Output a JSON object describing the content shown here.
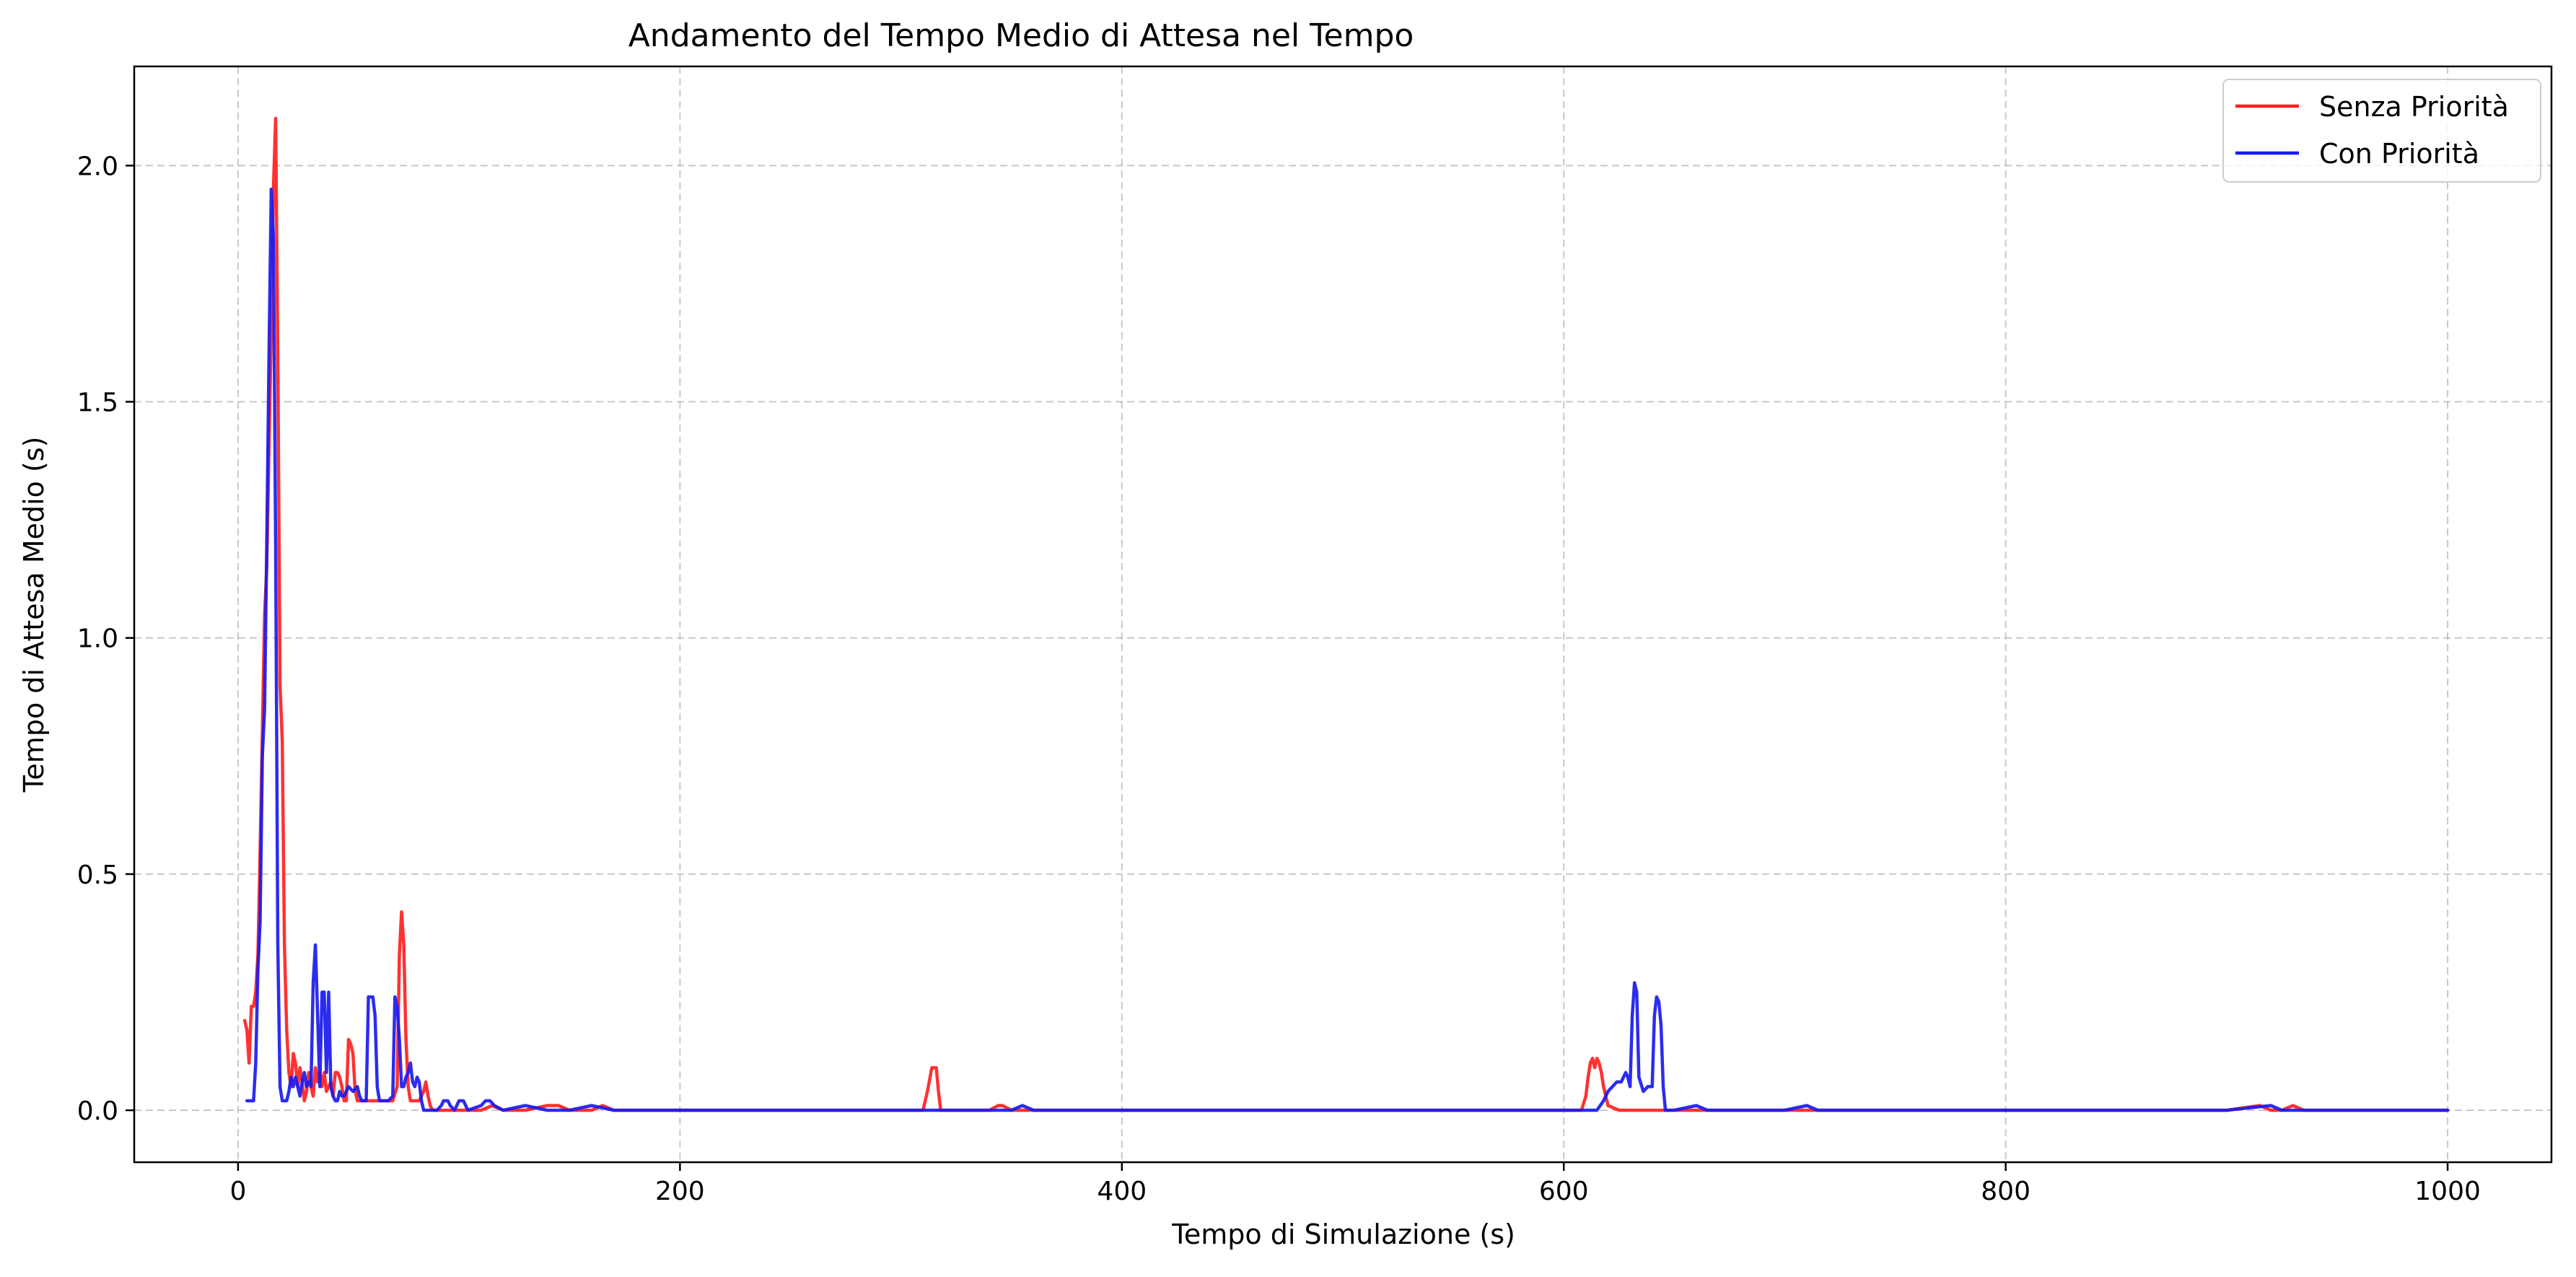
{
  "chart_data": {
    "type": "line",
    "title": "Andamento del Tempo Medio di Attesa nel Tempo",
    "xlabel": "Tempo di Simulazione (s)",
    "ylabel": "Tempo di Attesa Medio (s)",
    "xlim": [
      -47,
      1047
    ],
    "ylim": [
      -0.11,
      2.21
    ],
    "xticks": [
      0,
      200,
      400,
      600,
      800,
      1000
    ],
    "yticks": [
      0.0,
      0.5,
      1.0,
      1.5,
      2.0
    ],
    "xtick_labels": [
      "0",
      "200",
      "400",
      "600",
      "800",
      "1000"
    ],
    "ytick_labels": [
      "0.0",
      "0.5",
      "1.0",
      "1.5",
      "2.0"
    ],
    "grid": true,
    "legend_position": "top-right",
    "series": [
      {
        "name": "Senza Priorità",
        "color": "#ff2020",
        "points": [
          [
            3,
            0.19
          ],
          [
            4,
            0.17
          ],
          [
            5,
            0.1
          ],
          [
            6,
            0.22
          ],
          [
            7,
            0.22
          ],
          [
            8,
            0.25
          ],
          [
            9,
            0.33
          ],
          [
            10,
            0.55
          ],
          [
            11,
            0.8
          ],
          [
            12,
            1.05
          ],
          [
            13,
            1.15
          ],
          [
            14,
            1.4
          ],
          [
            15,
            1.65
          ],
          [
            16,
            1.95
          ],
          [
            17,
            2.1
          ],
          [
            18,
            1.6
          ],
          [
            19,
            0.9
          ],
          [
            20,
            0.78
          ],
          [
            21,
            0.35
          ],
          [
            22,
            0.17
          ],
          [
            23,
            0.08
          ],
          [
            24,
            0.05
          ],
          [
            25,
            0.12
          ],
          [
            26,
            0.1
          ],
          [
            27,
            0.05
          ],
          [
            28,
            0.09
          ],
          [
            29,
            0.06
          ],
          [
            30,
            0.02
          ],
          [
            31,
            0.04
          ],
          [
            32,
            0.08
          ],
          [
            33,
            0.05
          ],
          [
            34,
            0.03
          ],
          [
            35,
            0.09
          ],
          [
            36,
            0.06
          ],
          [
            37,
            0.08
          ],
          [
            38,
            0.05
          ],
          [
            39,
            0.08
          ],
          [
            40,
            0.04
          ],
          [
            41,
            0.05
          ],
          [
            42,
            0.06
          ],
          [
            43,
            0.03
          ],
          [
            44,
            0.08
          ],
          [
            45,
            0.08
          ],
          [
            46,
            0.07
          ],
          [
            47,
            0.05
          ],
          [
            48,
            0.02
          ],
          [
            49,
            0.02
          ],
          [
            50,
            0.15
          ],
          [
            51,
            0.14
          ],
          [
            52,
            0.12
          ],
          [
            53,
            0.04
          ],
          [
            54,
            0.02
          ],
          [
            55,
            0.02
          ],
          [
            57,
            0.02
          ],
          [
            60,
            0.02
          ],
          [
            62,
            0.02
          ],
          [
            65,
            0.02
          ],
          [
            68,
            0.02
          ],
          [
            70,
            0.02
          ],
          [
            72,
            0.05
          ],
          [
            73,
            0.33
          ],
          [
            74,
            0.42
          ],
          [
            75,
            0.35
          ],
          [
            76,
            0.15
          ],
          [
            77,
            0.05
          ],
          [
            78,
            0.02
          ],
          [
            80,
            0.02
          ],
          [
            82,
            0.02
          ],
          [
            84,
            0.04
          ],
          [
            85,
            0.06
          ],
          [
            86,
            0.03
          ],
          [
            87,
            0.01
          ],
          [
            88,
            0.0
          ],
          [
            90,
            0.0
          ],
          [
            100,
            0.0
          ],
          [
            105,
            0.0
          ],
          [
            110,
            0.0
          ],
          [
            115,
            0.01
          ],
          [
            120,
            0.0
          ],
          [
            130,
            0.0
          ],
          [
            140,
            0.01
          ],
          [
            145,
            0.01
          ],
          [
            150,
            0.0
          ],
          [
            160,
            0.0
          ],
          [
            165,
            0.01
          ],
          [
            170,
            0.0
          ],
          [
            200,
            0.0
          ],
          [
            250,
            0.0
          ],
          [
            300,
            0.0
          ],
          [
            310,
            0.0
          ],
          [
            312,
            0.04
          ],
          [
            314,
            0.09
          ],
          [
            316,
            0.09
          ],
          [
            317,
            0.04
          ],
          [
            318,
            0.0
          ],
          [
            340,
            0.0
          ],
          [
            344,
            0.01
          ],
          [
            346,
            0.01
          ],
          [
            350,
            0.0
          ],
          [
            400,
            0.0
          ],
          [
            450,
            0.0
          ],
          [
            500,
            0.0
          ],
          [
            550,
            0.0
          ],
          [
            600,
            0.0
          ],
          [
            608,
            0.0
          ],
          [
            610,
            0.03
          ],
          [
            611,
            0.07
          ],
          [
            612,
            0.1
          ],
          [
            613,
            0.11
          ],
          [
            614,
            0.09
          ],
          [
            615,
            0.11
          ],
          [
            616,
            0.1
          ],
          [
            617,
            0.08
          ],
          [
            618,
            0.05
          ],
          [
            619,
            0.03
          ],
          [
            620,
            0.01
          ],
          [
            625,
            0.0
          ],
          [
            630,
            0.0
          ],
          [
            640,
            0.0
          ],
          [
            660,
            0.0
          ],
          [
            700,
            0.0
          ],
          [
            800,
            0.0
          ],
          [
            900,
            0.0
          ],
          [
            915,
            0.01
          ],
          [
            920,
            0.0
          ],
          [
            925,
            0.0
          ],
          [
            930,
            0.01
          ],
          [
            935,
            0.0
          ],
          [
            1000,
            0.0
          ]
        ]
      },
      {
        "name": "Con Priorità",
        "color": "#1a1aee",
        "points": [
          [
            4,
            0.02
          ],
          [
            6,
            0.02
          ],
          [
            7,
            0.02
          ],
          [
            8,
            0.1
          ],
          [
            9,
            0.3
          ],
          [
            10,
            0.4
          ],
          [
            11,
            0.75
          ],
          [
            12,
            0.85
          ],
          [
            13,
            1.2
          ],
          [
            14,
            1.6
          ],
          [
            15,
            1.95
          ],
          [
            16,
            1.85
          ],
          [
            17,
            1.2
          ],
          [
            18,
            0.35
          ],
          [
            19,
            0.05
          ],
          [
            20,
            0.02
          ],
          [
            21,
            0.02
          ],
          [
            22,
            0.02
          ],
          [
            23,
            0.04
          ],
          [
            24,
            0.07
          ],
          [
            25,
            0.05
          ],
          [
            26,
            0.07
          ],
          [
            27,
            0.05
          ],
          [
            28,
            0.03
          ],
          [
            29,
            0.06
          ],
          [
            30,
            0.08
          ],
          [
            31,
            0.05
          ],
          [
            32,
            0.06
          ],
          [
            33,
            0.05
          ],
          [
            34,
            0.27
          ],
          [
            35,
            0.35
          ],
          [
            36,
            0.2
          ],
          [
            37,
            0.05
          ],
          [
            38,
            0.25
          ],
          [
            39,
            0.25
          ],
          [
            40,
            0.08
          ],
          [
            41,
            0.25
          ],
          [
            42,
            0.05
          ],
          [
            43,
            0.03
          ],
          [
            44,
            0.02
          ],
          [
            45,
            0.02
          ],
          [
            46,
            0.04
          ],
          [
            47,
            0.03
          ],
          [
            48,
            0.03
          ],
          [
            50,
            0.05
          ],
          [
            52,
            0.04
          ],
          [
            54,
            0.05
          ],
          [
            55,
            0.03
          ],
          [
            56,
            0.02
          ],
          [
            58,
            0.02
          ],
          [
            59,
            0.24
          ],
          [
            61,
            0.24
          ],
          [
            62,
            0.2
          ],
          [
            63,
            0.05
          ],
          [
            64,
            0.02
          ],
          [
            66,
            0.02
          ],
          [
            68,
            0.02
          ],
          [
            70,
            0.03
          ],
          [
            71,
            0.24
          ],
          [
            72,
            0.22
          ],
          [
            73,
            0.15
          ],
          [
            74,
            0.05
          ],
          [
            75,
            0.05
          ],
          [
            76,
            0.07
          ],
          [
            77,
            0.08
          ],
          [
            78,
            0.1
          ],
          [
            79,
            0.06
          ],
          [
            80,
            0.05
          ],
          [
            81,
            0.07
          ],
          [
            82,
            0.06
          ],
          [
            83,
            0.02
          ],
          [
            84,
            0.0
          ],
          [
            90,
            0.0
          ],
          [
            92,
            0.01
          ],
          [
            93,
            0.02
          ],
          [
            95,
            0.02
          ],
          [
            96,
            0.01
          ],
          [
            98,
            0.0
          ],
          [
            100,
            0.02
          ],
          [
            102,
            0.02
          ],
          [
            104,
            0.0
          ],
          [
            110,
            0.01
          ],
          [
            112,
            0.02
          ],
          [
            114,
            0.02
          ],
          [
            116,
            0.01
          ],
          [
            120,
            0.0
          ],
          [
            130,
            0.01
          ],
          [
            140,
            0.0
          ],
          [
            150,
            0.0
          ],
          [
            160,
            0.01
          ],
          [
            170,
            0.0
          ],
          [
            200,
            0.0
          ],
          [
            250,
            0.0
          ],
          [
            300,
            0.0
          ],
          [
            350,
            0.0
          ],
          [
            355,
            0.01
          ],
          [
            360,
            0.0
          ],
          [
            400,
            0.0
          ],
          [
            450,
            0.0
          ],
          [
            500,
            0.0
          ],
          [
            550,
            0.0
          ],
          [
            600,
            0.0
          ],
          [
            615,
            0.0
          ],
          [
            618,
            0.02
          ],
          [
            620,
            0.04
          ],
          [
            622,
            0.05
          ],
          [
            624,
            0.06
          ],
          [
            626,
            0.06
          ],
          [
            628,
            0.08
          ],
          [
            629,
            0.07
          ],
          [
            630,
            0.05
          ],
          [
            631,
            0.2
          ],
          [
            632,
            0.27
          ],
          [
            633,
            0.25
          ],
          [
            634,
            0.07
          ],
          [
            636,
            0.04
          ],
          [
            638,
            0.05
          ],
          [
            640,
            0.05
          ],
          [
            641,
            0.2
          ],
          [
            642,
            0.24
          ],
          [
            643,
            0.23
          ],
          [
            644,
            0.18
          ],
          [
            645,
            0.05
          ],
          [
            646,
            0.0
          ],
          [
            650,
            0.0
          ],
          [
            660,
            0.01
          ],
          [
            665,
            0.0
          ],
          [
            700,
            0.0
          ],
          [
            710,
            0.01
          ],
          [
            715,
            0.0
          ],
          [
            800,
            0.0
          ],
          [
            900,
            0.0
          ],
          [
            920,
            0.01
          ],
          [
            925,
            0.0
          ],
          [
            1000,
            0.0
          ]
        ]
      }
    ]
  }
}
